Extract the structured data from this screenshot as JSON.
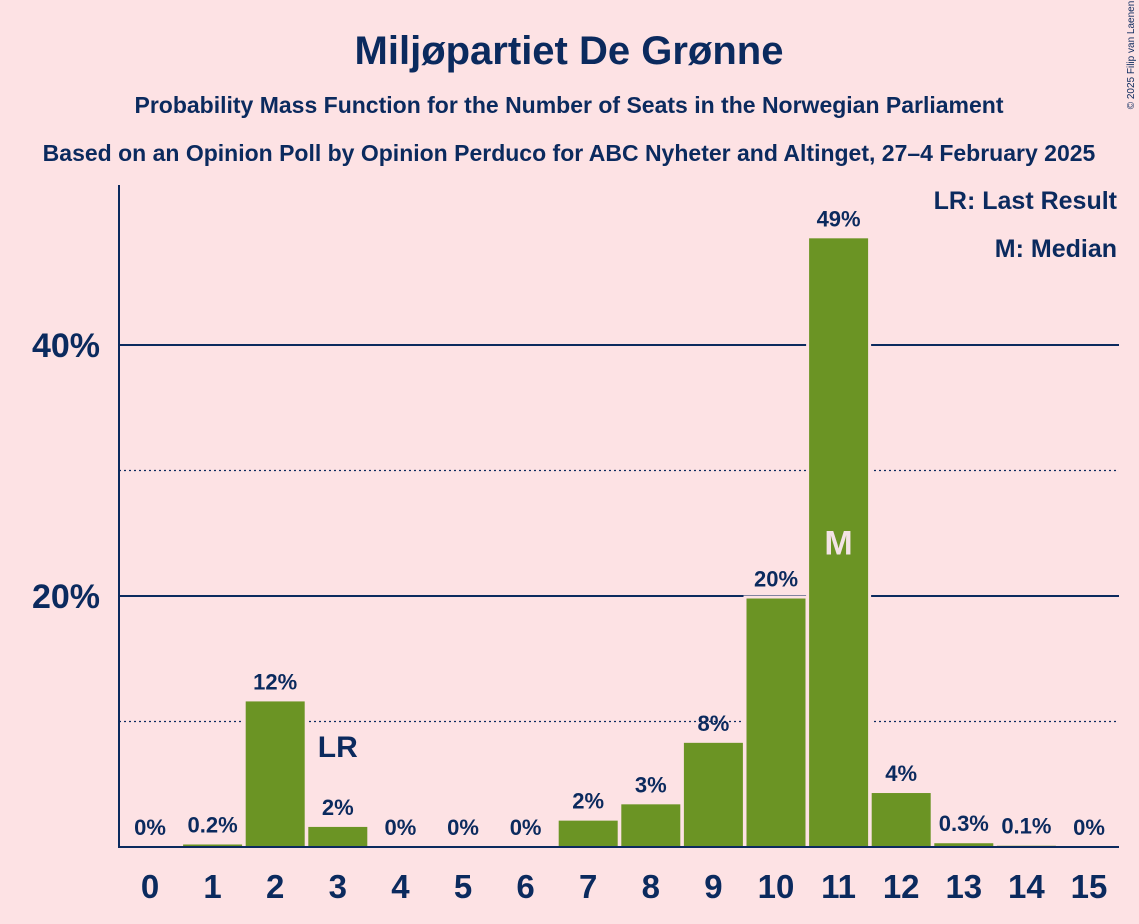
{
  "chart_data": {
    "type": "bar",
    "title": "Miljøpartiet De Grønne",
    "subtitle": "Probability Mass Function for the Number of Seats in the Norwegian Parliament",
    "subtitle2": "Based on an Opinion Poll by Opinion Perduco for ABC Nyheter and Altinget, 27–4 February 2025",
    "copyright": "© 2025 Filip van Laenen",
    "categories": [
      "0",
      "1",
      "2",
      "3",
      "4",
      "5",
      "6",
      "7",
      "8",
      "9",
      "10",
      "11",
      "12",
      "13",
      "14",
      "15"
    ],
    "values": [
      0,
      0.2,
      11.6,
      1.6,
      0,
      0,
      0,
      2.1,
      3.4,
      8.3,
      19.8,
      48.5,
      4.3,
      0.3,
      0.1,
      0
    ],
    "data_labels": [
      "0%",
      "0.2%",
      "12%",
      "2%",
      "0%",
      "0%",
      "0%",
      "2%",
      "3%",
      "8%",
      "20%",
      "49%",
      "4%",
      "0.3%",
      "0.1%",
      "0%"
    ],
    "ylim": [
      0,
      52
    ],
    "yticks": [
      {
        "value": 20,
        "label": "20%"
      },
      {
        "value": 40,
        "label": "40%"
      }
    ],
    "dotted_gridlines": [
      10,
      30
    ],
    "last_result": {
      "seats": 3,
      "label": "LR"
    },
    "median": {
      "seats": 11,
      "label": "M"
    },
    "legend": [
      "LR: Last Result",
      "M: Median"
    ],
    "xlabel": "",
    "ylabel": "",
    "colors": {
      "bar": "#6b9424",
      "background": "#fde2e4",
      "text": "#0b2a5e",
      "median_text": "#f3e3e5"
    }
  }
}
